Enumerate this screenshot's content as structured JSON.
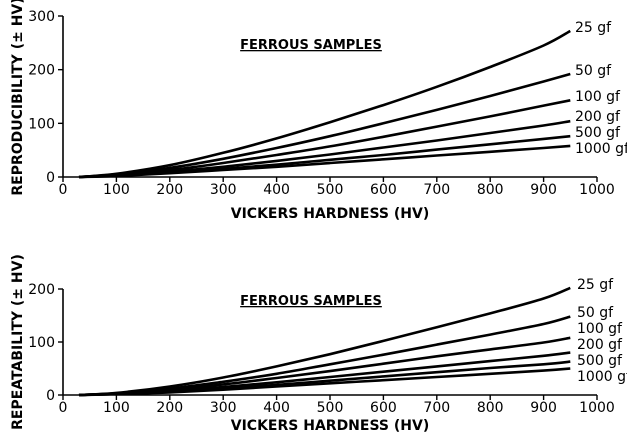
{
  "chart_data": [
    {
      "type": "line",
      "title": "FERROUS SAMPLES",
      "xlabel": "VICKERS HARDNESS (HV)",
      "ylabel": "REPRODUCIBILITY (± HV)",
      "xlim": [
        0,
        1000
      ],
      "ylim": [
        0,
        300
      ],
      "xticks": [
        0,
        100,
        200,
        300,
        400,
        500,
        600,
        700,
        800,
        900,
        1000
      ],
      "yticks": [
        0,
        100,
        200,
        300
      ],
      "grid": false,
      "x": [
        30,
        100,
        200,
        300,
        400,
        500,
        600,
        700,
        800,
        900,
        950
      ],
      "series": [
        {
          "name": "25 gf",
          "values": [
            0,
            6,
            22,
            45,
            72,
            102,
            134,
            168,
            205,
            245,
            272
          ]
        },
        {
          "name": "50 gf",
          "values": [
            0,
            5,
            17,
            34,
            54,
            76,
            100,
            125,
            151,
            178,
            192
          ]
        },
        {
          "name": "100 gf",
          "values": [
            0,
            4,
            13,
            26,
            41,
            57,
            75,
            94,
            113,
            133,
            143
          ]
        },
        {
          "name": "200 gf",
          "values": [
            0,
            3,
            10,
            19,
            30,
            42,
            55,
            68,
            82,
            96,
            104
          ]
        },
        {
          "name": "500 gf",
          "values": [
            0,
            3,
            8,
            15,
            23,
            32,
            41,
            51,
            61,
            71,
            76
          ]
        },
        {
          "name": "1000 gf",
          "values": [
            0,
            2,
            7,
            13,
            19,
            26,
            33,
            40,
            47,
            54,
            58
          ]
        }
      ]
    },
    {
      "type": "line",
      "title": "FERROUS SAMPLES",
      "xlabel": "VICKERS HARDNESS (HV)",
      "ylabel": "REPEATABILITY (± HV)",
      "xlim": [
        0,
        1000
      ],
      "ylim": [
        0,
        200
      ],
      "xticks": [
        0,
        100,
        200,
        300,
        400,
        500,
        600,
        700,
        800,
        900,
        1000
      ],
      "yticks": [
        0,
        100,
        200
      ],
      "grid": false,
      "x": [
        30,
        100,
        200,
        300,
        400,
        500,
        600,
        700,
        800,
        900,
        950
      ],
      "series": [
        {
          "name": "25 gf",
          "values": [
            0,
            4,
            16,
            33,
            54,
            77,
            102,
            128,
            154,
            182,
            202
          ]
        },
        {
          "name": "50 gf",
          "values": [
            0,
            3,
            12,
            25,
            40,
            58,
            76,
            95,
            114,
            134,
            148
          ]
        },
        {
          "name": "100 gf",
          "values": [
            0,
            3,
            10,
            20,
            32,
            45,
            59,
            73,
            86,
            99,
            108
          ]
        },
        {
          "name": "200 gf",
          "values": [
            0,
            2,
            8,
            15,
            24,
            34,
            44,
            54,
            64,
            74,
            80
          ]
        },
        {
          "name": "500 gf",
          "values": [
            0,
            2,
            6,
            12,
            19,
            27,
            35,
            43,
            51,
            58,
            63
          ]
        },
        {
          "name": "1000 gf",
          "values": [
            0,
            2,
            5,
            10,
            16,
            22,
            28,
            34,
            40,
            46,
            50
          ]
        }
      ]
    }
  ]
}
